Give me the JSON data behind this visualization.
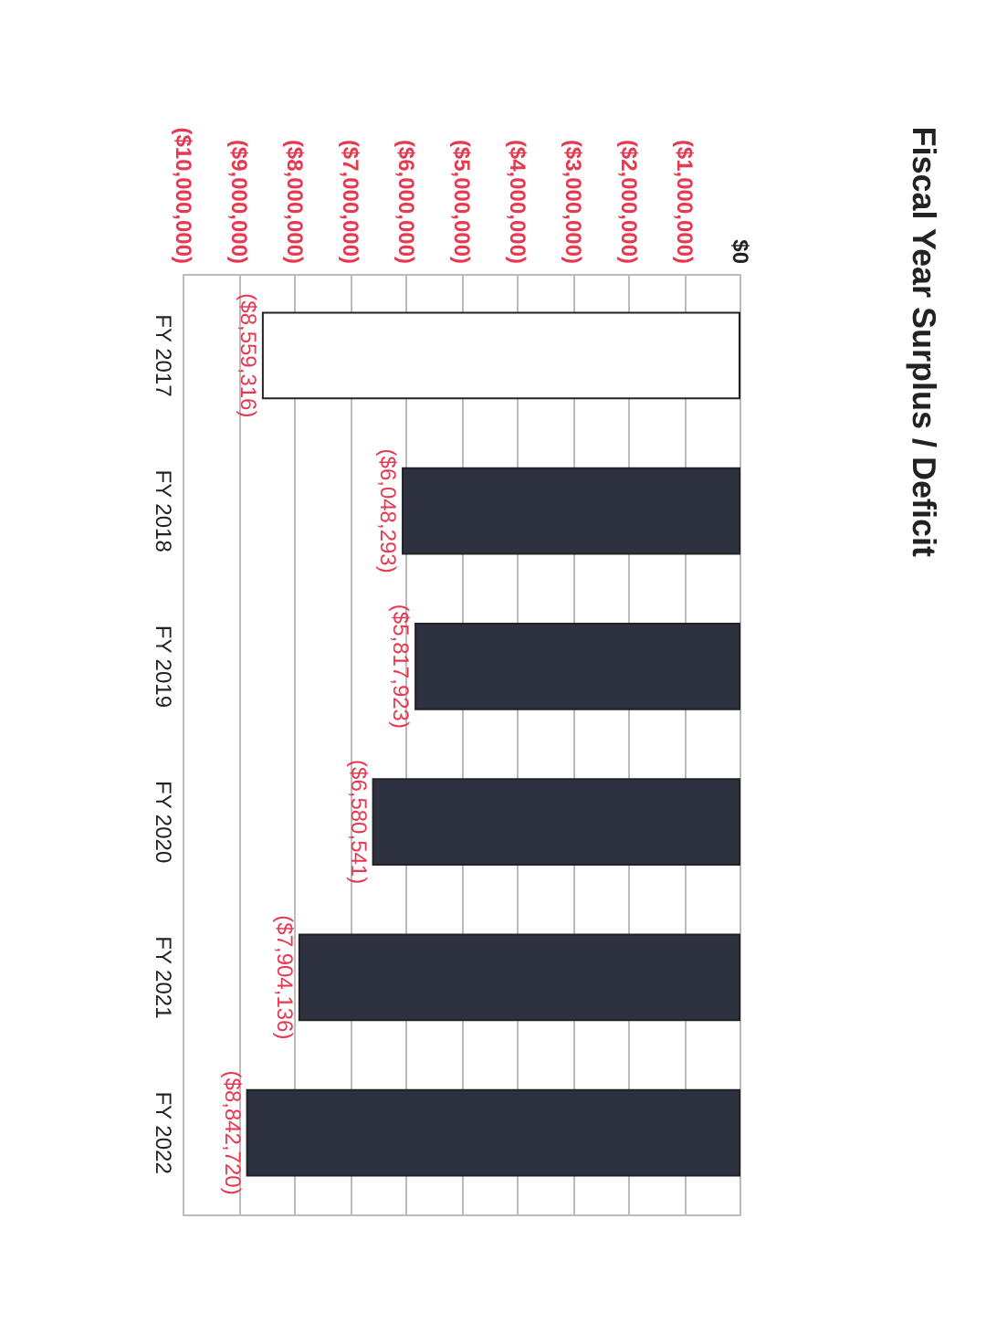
{
  "chart_data": {
    "type": "bar",
    "title": "Fiscal Year Surplus / Deficit",
    "orientation": "horizontal",
    "categories": [
      "FY 2017",
      "FY 2018",
      "FY 2019",
      "FY 2020",
      "FY 2021",
      "FY 2022"
    ],
    "values": [
      -8559316,
      -6048293,
      -5817923,
      -6580541,
      -7904136,
      -8842720
    ],
    "colors": [
      "#ffffff",
      "#2e3140",
      "#2e3140",
      "#2e3140",
      "#2e3140",
      "#2e3140"
    ],
    "value_labels": [
      "($8,559,316)",
      "($6,048,293)",
      "($5,817,923)",
      "($6,580,541)",
      "($7,904,136)",
      "($8,842,720)"
    ],
    "xlim": [
      -10000000,
      0
    ],
    "xticks": [
      {
        "value": -10000000,
        "label": "($10,000,000)"
      },
      {
        "value": -9000000,
        "label": "($9,000,000)"
      },
      {
        "value": -8000000,
        "label": "($8,000,000)"
      },
      {
        "value": -7000000,
        "label": "($7,000,000)"
      },
      {
        "value": -6000000,
        "label": "($6,000,000)"
      },
      {
        "value": -5000000,
        "label": "($5,000,000)"
      },
      {
        "value": -4000000,
        "label": "($4,000,000)"
      },
      {
        "value": -3000000,
        "label": "($3,000,000)"
      },
      {
        "value": -2000000,
        "label": "($2,000,000)"
      },
      {
        "value": -1000000,
        "label": "($1,000,000)"
      },
      {
        "value": 0,
        "label": "$0"
      }
    ],
    "grid": "x"
  }
}
